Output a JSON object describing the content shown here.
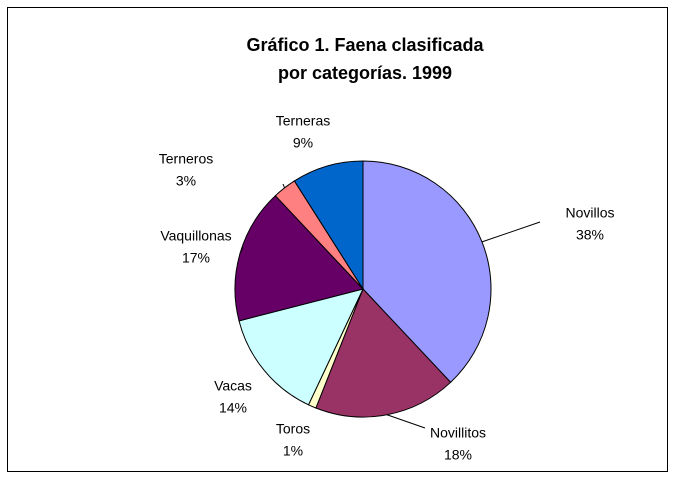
{
  "chart_data": {
    "type": "pie",
    "title": [
      "Gráfico 1. Faena clasificada",
      "por categorías. 1999"
    ],
    "categories": [
      "Novillos",
      "Novillitos",
      "Toros",
      "Vacas",
      "Vaquillonas",
      "Terneros",
      "Terneras"
    ],
    "values": [
      38,
      18,
      1,
      14,
      17,
      3,
      9
    ],
    "value_labels": [
      "38%",
      "18%",
      "1%",
      "14%",
      "17%",
      "3%",
      "9%"
    ],
    "colors": [
      "#9999ff",
      "#993366",
      "#ffffcc",
      "#ccffff",
      "#660066",
      "#ff8080",
      "#0066cc"
    ]
  }
}
